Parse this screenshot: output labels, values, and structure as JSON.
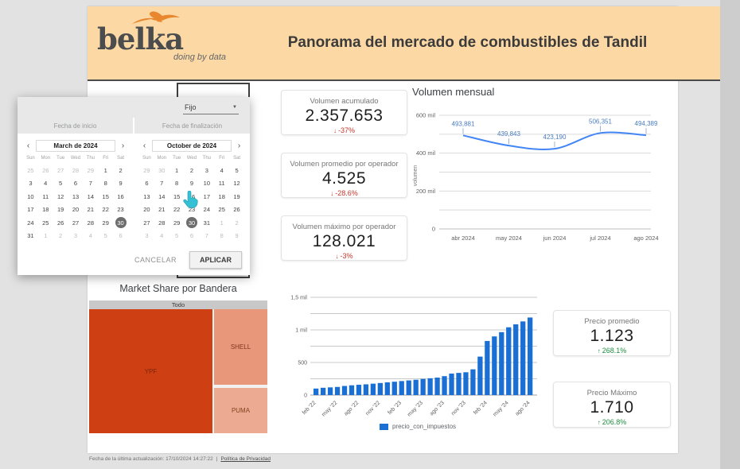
{
  "header": {
    "logo_text": "belka",
    "logo_tagline": "doing by data",
    "title": "Panorama del mercado de combustibles de Tandil"
  },
  "icons": {
    "dropdown_caret": "▼",
    "chevron_left": "‹",
    "chevron_right": "›",
    "delta_down": "↓",
    "delta_up": "↑"
  },
  "date_picker": {
    "mode_label": "Fijo",
    "tabs": [
      "Fecha de inicio",
      "Fecha de finalización"
    ],
    "weekdays": [
      "Sun",
      "Mon",
      "Tue",
      "Wed",
      "Thu",
      "Fri",
      "Sat"
    ],
    "calendars": [
      {
        "month_label": "March de 2024",
        "days": [
          "~25",
          "~26",
          "~27",
          "~28",
          "~29",
          "1",
          "2",
          "3",
          "4",
          "5",
          "6",
          "7",
          "8",
          "9",
          "10",
          "11",
          "12",
          "13",
          "14",
          "15",
          "16",
          "17",
          "18",
          "19",
          "20",
          "21",
          "22",
          "23",
          "24",
          "25",
          "26",
          "27",
          "28",
          "29",
          "*30",
          "31",
          "~1",
          "~2",
          "~3",
          "~4",
          "~5",
          "~6"
        ]
      },
      {
        "month_label": "October de 2024",
        "days": [
          "~29",
          "~30",
          "1",
          "2",
          "3",
          "4",
          "5",
          "6",
          "7",
          "8",
          "9",
          "10",
          "11",
          "12",
          "13",
          "14",
          "15",
          "16",
          "17",
          "18",
          "19",
          "20",
          "21",
          "22",
          "23",
          "24",
          "25",
          "26",
          "27",
          "28",
          "29",
          "*30",
          "31",
          "~1",
          "~2",
          "~3",
          "~4",
          "~5",
          "~6",
          "~7",
          "~8",
          "~9"
        ]
      }
    ],
    "cancel_label": "CANCELAR",
    "apply_label": "APLICAR"
  },
  "kpis": [
    {
      "label": "Volumen acumulado",
      "value": "2.357.653",
      "delta": "-37%",
      "direction": "down"
    },
    {
      "label": "Volumen promedio por operador",
      "value": "4.525",
      "delta": "-28.6%",
      "direction": "down"
    },
    {
      "label": "Volumen máximo por operador",
      "value": "128.021",
      "delta": "-3%",
      "direction": "down"
    },
    {
      "label": "Precio promedio",
      "value": "1.123",
      "delta": "268.1%",
      "direction": "up"
    },
    {
      "label": "Precio Máximo",
      "value": "1.710",
      "delta": "206.8%",
      "direction": "up"
    }
  ],
  "colors": {
    "header_bg": "#fcd9a4",
    "logo_orange": "#e8872e",
    "line_blue": "#4285f4",
    "label_blue": "#4a7cc0",
    "bar_blue": "#1a6fd4",
    "kpi_down_red": "#c5352b",
    "kpi_up_green": "#1e8e3e",
    "treemap_ypf": "#ce4014",
    "treemap_shell": "#e9977a",
    "treemap_puma": "#edaa92"
  },
  "chart_data": [
    {
      "type": "line",
      "title": "Volumen mensual",
      "ylabel": "volumen",
      "x": [
        "abr 2024",
        "may 2024",
        "jun 2024",
        "jul 2024",
        "ago 2024"
      ],
      "values": [
        493881,
        439843,
        423190,
        506351,
        494389
      ],
      "point_labels": [
        "493,881",
        "439,843",
        "423,190",
        "506,351",
        "494,389"
      ],
      "ylim": [
        0,
        600000
      ],
      "grid_step": 100000,
      "yticks": [
        [
          0,
          "0"
        ],
        [
          200000,
          "200 mil"
        ],
        [
          400000,
          "400 mil"
        ],
        [
          600000,
          "600 mil"
        ]
      ],
      "grid": true,
      "legend_position": "none"
    },
    {
      "type": "treemap",
      "title": "Market Share por Bandera",
      "root_label": "Todo",
      "items": [
        {
          "name": "YPF",
          "share_pct": 70
        },
        {
          "name": "SHELL",
          "share_pct": 19
        },
        {
          "name": "PUMA",
          "share_pct": 11
        }
      ]
    },
    {
      "type": "bar",
      "series_name": "precio_con_impuestos",
      "categories": [
        "feb '22",
        "mar '22",
        "abr '22",
        "may '22",
        "jun '22",
        "jul '22",
        "ago '22",
        "sep '22",
        "oct '22",
        "nov '22",
        "dic '22",
        "ene '23",
        "feb '23",
        "mar '23",
        "abr '23",
        "may '23",
        "jun '23",
        "jul '23",
        "ago '23",
        "sep '23",
        "oct '23",
        "nov '23",
        "dic '23",
        "ene '24",
        "feb '24",
        "mar '24",
        "abr '24",
        "may '24",
        "jun '24",
        "jul '24",
        "ago '24"
      ],
      "values": [
        100,
        112,
        118,
        125,
        140,
        150,
        158,
        165,
        175,
        185,
        195,
        205,
        215,
        225,
        235,
        248,
        258,
        268,
        290,
        330,
        340,
        350,
        395,
        590,
        830,
        900,
        965,
        1040,
        1085,
        1130,
        1190
      ],
      "tick_every": 3,
      "ylim": [
        0,
        1500
      ],
      "grid_step": 250,
      "yticks": [
        [
          0,
          "0"
        ],
        [
          500,
          "500"
        ],
        [
          1000,
          "1 mil"
        ],
        [
          1500,
          "1,5 mil"
        ]
      ],
      "grid": true,
      "legend_position": "bottom"
    }
  ],
  "footer": {
    "updated_text": "Fecha de la última actualización: 17/10/2024 14:27:22",
    "separator": "|",
    "privacy_link": "Política de Privacidad"
  }
}
